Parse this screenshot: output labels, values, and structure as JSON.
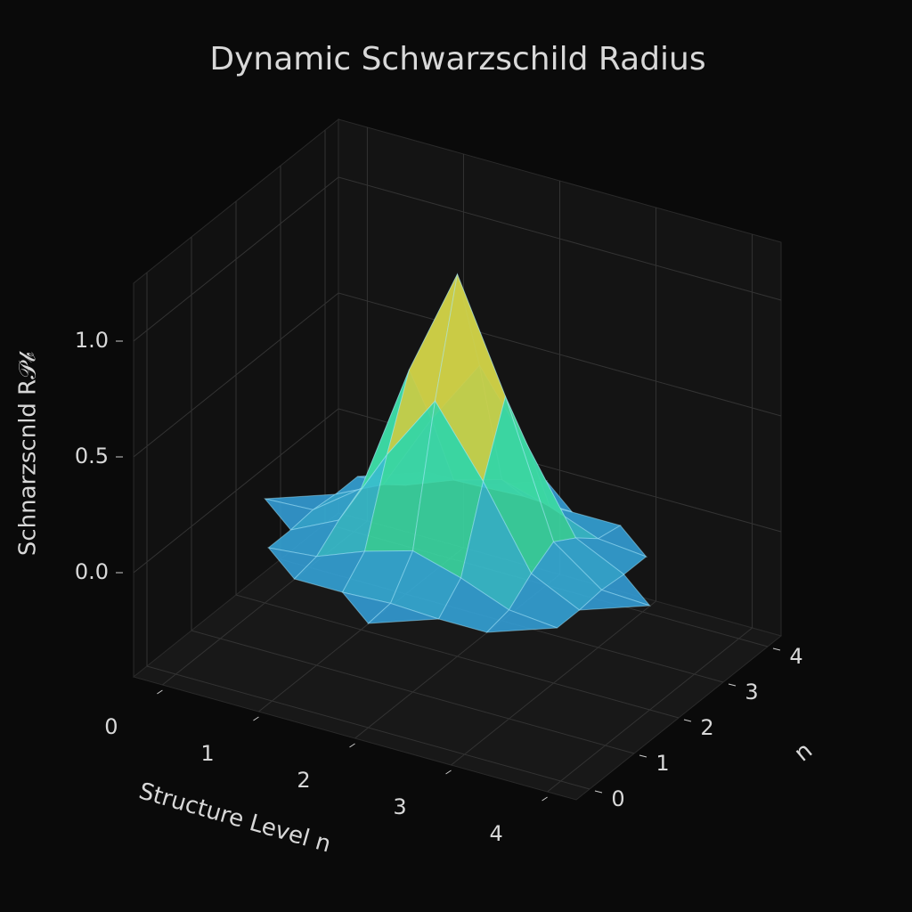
{
  "chart_data": {
    "type": "surface3d",
    "title": "Dynamic Schwarzschild Radius",
    "xlabel": "Structure Level n",
    "ylabel": "n",
    "zlabel": "Schnarzscnld R𝒫𝒷",
    "x": [
      0,
      0.5,
      1,
      1.5,
      2,
      2.5,
      3,
      3.5,
      4
    ],
    "y": [
      0,
      0.5,
      1,
      1.5,
      2,
      2.5,
      3,
      3.5,
      4
    ],
    "z": [
      [
        null,
        null,
        null,
        null,
        0,
        null,
        null,
        null,
        null
      ],
      [
        null,
        null,
        0,
        0,
        0.01,
        0,
        0,
        null,
        null
      ],
      [
        null,
        0,
        0.02,
        0.1,
        0.16,
        0.1,
        0.02,
        0,
        null
      ],
      [
        null,
        0,
        0.1,
        0.44,
        0.73,
        0.44,
        0.1,
        0,
        null
      ],
      [
        0,
        0.01,
        0.16,
        0.73,
        1.2,
        0.73,
        0.16,
        0.01,
        0
      ],
      [
        null,
        0,
        0.1,
        0.44,
        0.73,
        0.44,
        0.1,
        0,
        null
      ],
      [
        null,
        0,
        0.02,
        0.1,
        0.16,
        0.1,
        0.02,
        0,
        null
      ],
      [
        null,
        null,
        0,
        0,
        0.01,
        0,
        0,
        null,
        null
      ],
      [
        null,
        null,
        null,
        null,
        0,
        null,
        null,
        null,
        null
      ]
    ],
    "xlim": [
      -0.3,
      4.3
    ],
    "ylim": [
      -0.3,
      4.3
    ],
    "zlim": [
      -0.45,
      1.25
    ],
    "xticks": [
      0,
      1,
      2,
      3,
      4
    ],
    "yticks": [
      0,
      1,
      2,
      3,
      4
    ],
    "zticks": [
      {
        "value": 0,
        "label": "0.0"
      },
      0.5,
      {
        "value": 1,
        "label": "1.0"
      }
    ],
    "colormap": [
      "#1e2a8c",
      "#2b6cc4",
      "#38b7d8",
      "#3ddc98",
      "#b8e04a",
      "#f3a13a",
      "#d9531e"
    ],
    "grid": true
  }
}
